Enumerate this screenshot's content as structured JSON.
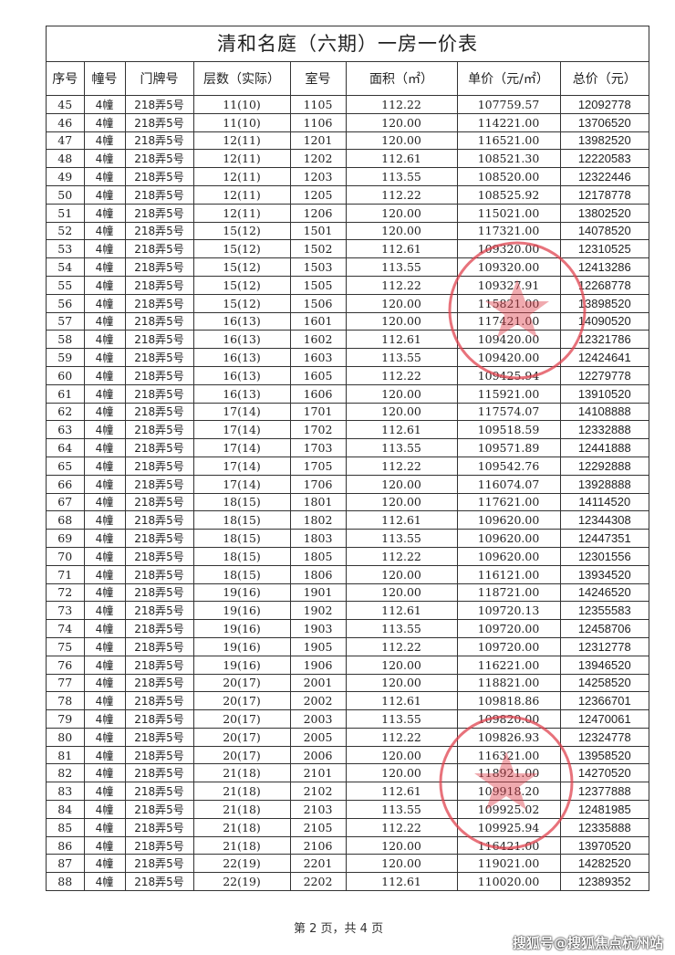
{
  "title": "清和名庭（六期）一房一价表",
  "headers": [
    "序号",
    "幢号",
    "门牌号",
    "层数（实际）",
    "室号",
    "面积（㎡）",
    "单价（元/㎡）",
    "总价（元）"
  ],
  "rows": [
    [
      "45",
      "4幢",
      "218弄5号",
      "11(10)",
      "1105",
      "112.22",
      "107759.57",
      "12092778"
    ],
    [
      "46",
      "4幢",
      "218弄5号",
      "11(10)",
      "1106",
      "120.00",
      "114221.00",
      "13706520"
    ],
    [
      "47",
      "4幢",
      "218弄5号",
      "12(11)",
      "1201",
      "120.00",
      "116521.00",
      "13982520"
    ],
    [
      "48",
      "4幢",
      "218弄5号",
      "12(11)",
      "1202",
      "112.61",
      "108521.30",
      "12220583"
    ],
    [
      "49",
      "4幢",
      "218弄5号",
      "12(11)",
      "1203",
      "113.55",
      "108520.00",
      "12322446"
    ],
    [
      "50",
      "4幢",
      "218弄5号",
      "12(11)",
      "1205",
      "112.22",
      "108525.92",
      "12178778"
    ],
    [
      "51",
      "4幢",
      "218弄5号",
      "12(11)",
      "1206",
      "120.00",
      "115021.00",
      "13802520"
    ],
    [
      "52",
      "4幢",
      "218弄5号",
      "15(12)",
      "1501",
      "120.00",
      "117321.00",
      "14078520"
    ],
    [
      "53",
      "4幢",
      "218弄5号",
      "15(12)",
      "1502",
      "112.61",
      "109320.00",
      "12310525"
    ],
    [
      "54",
      "4幢",
      "218弄5号",
      "15(12)",
      "1503",
      "113.55",
      "109320.00",
      "12413286"
    ],
    [
      "55",
      "4幢",
      "218弄5号",
      "15(12)",
      "1505",
      "112.22",
      "109327.91",
      "12268778"
    ],
    [
      "56",
      "4幢",
      "218弄5号",
      "15(12)",
      "1506",
      "120.00",
      "115821.00",
      "13898520"
    ],
    [
      "57",
      "4幢",
      "218弄5号",
      "16(13)",
      "1601",
      "120.00",
      "117421.00",
      "14090520"
    ],
    [
      "58",
      "4幢",
      "218弄5号",
      "16(13)",
      "1602",
      "112.61",
      "109420.00",
      "12321786"
    ],
    [
      "59",
      "4幢",
      "218弄5号",
      "16(13)",
      "1603",
      "113.55",
      "109420.00",
      "12424641"
    ],
    [
      "60",
      "4幢",
      "218弄5号",
      "16(13)",
      "1605",
      "112.22",
      "109425.94",
      "12279778"
    ],
    [
      "61",
      "4幢",
      "218弄5号",
      "16(13)",
      "1606",
      "120.00",
      "115921.00",
      "13910520"
    ],
    [
      "62",
      "4幢",
      "218弄5号",
      "17(14)",
      "1701",
      "120.00",
      "117574.07",
      "14108888"
    ],
    [
      "63",
      "4幢",
      "218弄5号",
      "17(14)",
      "1702",
      "112.61",
      "109518.59",
      "12332888"
    ],
    [
      "64",
      "4幢",
      "218弄5号",
      "17(14)",
      "1703",
      "113.55",
      "109571.89",
      "12441888"
    ],
    [
      "65",
      "4幢",
      "218弄5号",
      "17(14)",
      "1705",
      "112.22",
      "109542.76",
      "12292888"
    ],
    [
      "66",
      "4幢",
      "218弄5号",
      "17(14)",
      "1706",
      "120.00",
      "116074.07",
      "13928888"
    ],
    [
      "67",
      "4幢",
      "218弄5号",
      "18(15)",
      "1801",
      "120.00",
      "117621.00",
      "14114520"
    ],
    [
      "68",
      "4幢",
      "218弄5号",
      "18(15)",
      "1802",
      "112.61",
      "109620.00",
      "12344308"
    ],
    [
      "69",
      "4幢",
      "218弄5号",
      "18(15)",
      "1803",
      "113.55",
      "109620.00",
      "12447351"
    ],
    [
      "70",
      "4幢",
      "218弄5号",
      "18(15)",
      "1805",
      "112.22",
      "109620.00",
      "12301556"
    ],
    [
      "71",
      "4幢",
      "218弄5号",
      "18(15)",
      "1806",
      "120.00",
      "116121.00",
      "13934520"
    ],
    [
      "72",
      "4幢",
      "218弄5号",
      "19(16)",
      "1901",
      "120.00",
      "118721.00",
      "14246520"
    ],
    [
      "73",
      "4幢",
      "218弄5号",
      "19(16)",
      "1902",
      "112.61",
      "109720.13",
      "12355583"
    ],
    [
      "74",
      "4幢",
      "218弄5号",
      "19(16)",
      "1903",
      "113.55",
      "109720.00",
      "12458706"
    ],
    [
      "75",
      "4幢",
      "218弄5号",
      "19(16)",
      "1905",
      "112.22",
      "109720.00",
      "12312778"
    ],
    [
      "76",
      "4幢",
      "218弄5号",
      "19(16)",
      "1906",
      "120.00",
      "116221.00",
      "13946520"
    ],
    [
      "77",
      "4幢",
      "218弄5号",
      "20(17)",
      "2001",
      "120.00",
      "118821.00",
      "14258520"
    ],
    [
      "78",
      "4幢",
      "218弄5号",
      "20(17)",
      "2002",
      "112.61",
      "109818.86",
      "12366701"
    ],
    [
      "79",
      "4幢",
      "218弄5号",
      "20(17)",
      "2003",
      "113.55",
      "109820.00",
      "12470061"
    ],
    [
      "80",
      "4幢",
      "218弄5号",
      "20(17)",
      "2005",
      "112.22",
      "109826.93",
      "12324778"
    ],
    [
      "81",
      "4幢",
      "218弄5号",
      "20(17)",
      "2006",
      "120.00",
      "116321.00",
      "13958520"
    ],
    [
      "82",
      "4幢",
      "218弄5号",
      "21(18)",
      "2101",
      "120.00",
      "118921.00",
      "14270520"
    ],
    [
      "83",
      "4幢",
      "218弄5号",
      "21(18)",
      "2102",
      "112.61",
      "109918.20",
      "12377888"
    ],
    [
      "84",
      "4幢",
      "218弄5号",
      "21(18)",
      "2103",
      "113.55",
      "109925.02",
      "12481985"
    ],
    [
      "85",
      "4幢",
      "218弄5号",
      "21(18)",
      "2105",
      "112.22",
      "109925.94",
      "12335888"
    ],
    [
      "86",
      "4幢",
      "218弄5号",
      "21(18)",
      "2106",
      "120.00",
      "116421.00",
      "13970520"
    ],
    [
      "87",
      "4幢",
      "218弄5号",
      "22(19)",
      "2201",
      "120.00",
      "119021.00",
      "14282520"
    ],
    [
      "88",
      "4幢",
      "218弄5号",
      "22(19)",
      "2202",
      "112.61",
      "110020.00",
      "12389352"
    ]
  ],
  "footer": "第 2 页，共 4 页",
  "watermark": "搜狐号@搜狐焦点杭州站",
  "stamp_color": "#e0434f"
}
